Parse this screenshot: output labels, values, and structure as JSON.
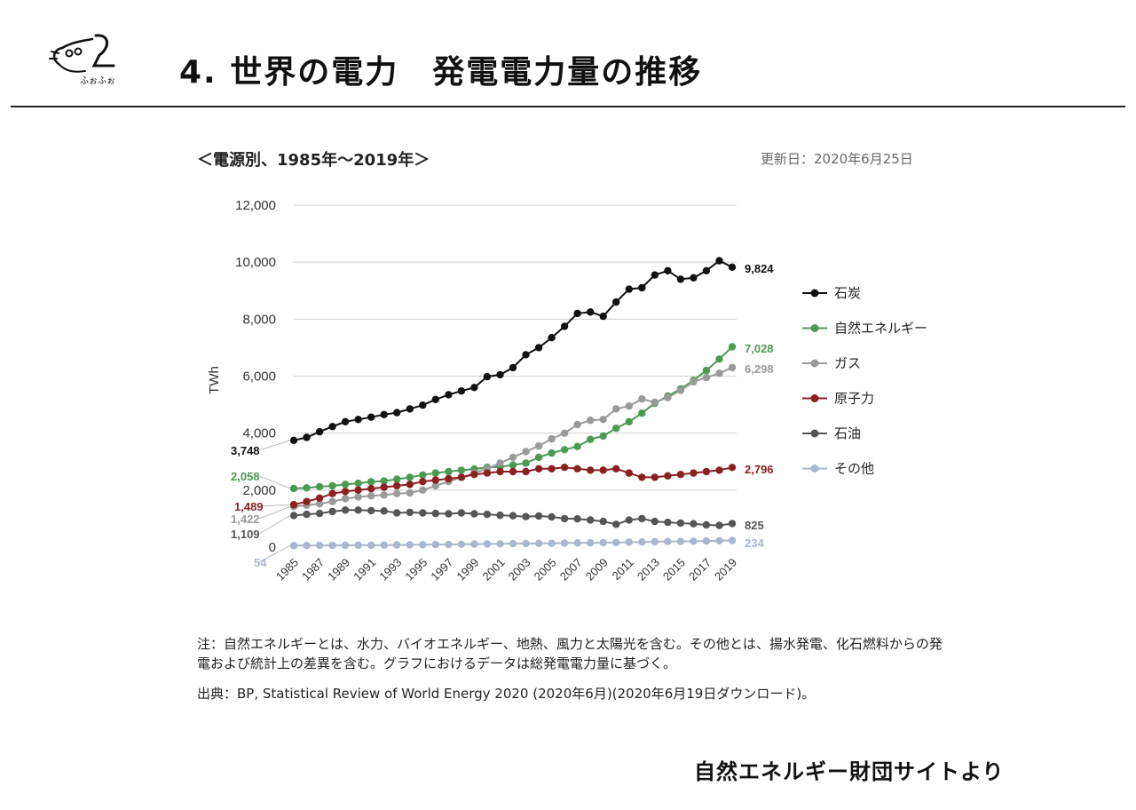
{
  "slide_title": "4. 世界の電力　発電電力量の推移",
  "logo": {
    "icon": "ghost-doodle-logo",
    "text": "ふぉふぉ"
  },
  "chart_heading": "＜電源別、1985年～2019年＞",
  "updated": "更新日：2020年6月25日",
  "note": "注：自然エネルギーとは、水力、バイオエネルギー、地熱、風力と太陽光を含む。その他とは、揚水発電、化石燃料からの発電および統計上の差異を含む。グラフにおけるデータは総発電電力量に基づく。",
  "source": "出典：BP, Statistical Review of World Energy 2020 (2020年6月)(2020年6月19日ダウンロード)。",
  "credit": "自然エネルギー財団サイトより",
  "chart_data": {
    "type": "line",
    "ylabel": "TWh",
    "ylim": [
      0,
      12000
    ],
    "yticks": [
      "0",
      "2,000",
      "4,000",
      "6,000",
      "8,000",
      "10,000",
      "12,000"
    ],
    "xtick_labels": [
      "1985",
      "1987",
      "1989",
      "1991",
      "1993",
      "1995",
      "1997",
      "1999",
      "2001",
      "2003",
      "2005",
      "2007",
      "2009",
      "2011",
      "2013",
      "2015",
      "2017",
      "2019"
    ],
    "grid": true,
    "legend_position": "right",
    "x": [
      1985,
      1986,
      1987,
      1988,
      1989,
      1990,
      1991,
      1992,
      1993,
      1994,
      1995,
      1996,
      1997,
      1998,
      1999,
      2000,
      2001,
      2002,
      2003,
      2004,
      2005,
      2006,
      2007,
      2008,
      2009,
      2010,
      2011,
      2012,
      2013,
      2014,
      2015,
      2016,
      2017,
      2018,
      2019
    ],
    "series": [
      {
        "name": "石炭",
        "color": "#111111",
        "start_label": "3,748",
        "end_label": "9,824",
        "values": [
          3748,
          3850,
          4050,
          4230,
          4400,
          4480,
          4560,
          4650,
          4720,
          4850,
          4980,
          5180,
          5350,
          5480,
          5600,
          5980,
          6050,
          6300,
          6750,
          7000,
          7350,
          7750,
          8200,
          8250,
          8100,
          8600,
          9050,
          9100,
          9550,
          9700,
          9400,
          9450,
          9700,
          10050,
          9824
        ]
      },
      {
        "name": "自然エネルギー",
        "color": "#4c9a52",
        "start_label": "2,058",
        "end_label": "7,028",
        "values": [
          2058,
          2080,
          2120,
          2150,
          2200,
          2240,
          2290,
          2320,
          2380,
          2450,
          2530,
          2600,
          2650,
          2700,
          2740,
          2800,
          2820,
          2880,
          2950,
          3150,
          3300,
          3420,
          3530,
          3780,
          3900,
          4170,
          4400,
          4700,
          5050,
          5300,
          5550,
          5850,
          6200,
          6600,
          7028
        ]
      },
      {
        "name": "ガス",
        "color": "#9a9a9a",
        "start_label": "1,422",
        "end_label": "6,298",
        "values": [
          1422,
          1470,
          1520,
          1600,
          1700,
          1760,
          1800,
          1830,
          1880,
          1900,
          2000,
          2150,
          2300,
          2450,
          2600,
          2750,
          2950,
          3150,
          3350,
          3550,
          3800,
          4000,
          4300,
          4450,
          4480,
          4850,
          4950,
          5200,
          5080,
          5250,
          5500,
          5800,
          5950,
          6100,
          6298
        ]
      },
      {
        "name": "原子力",
        "color": "#8b2020",
        "start_label": "1,489",
        "end_label": "2,796",
        "values": [
          1489,
          1600,
          1720,
          1880,
          1950,
          2000,
          2050,
          2100,
          2150,
          2200,
          2300,
          2350,
          2400,
          2450,
          2550,
          2600,
          2650,
          2650,
          2650,
          2750,
          2750,
          2800,
          2750,
          2700,
          2700,
          2750,
          2600,
          2450,
          2450,
          2500,
          2550,
          2600,
          2650,
          2700,
          2796
        ]
      },
      {
        "name": "石油",
        "color": "#555555",
        "start_label": "1,109",
        "end_label": "825",
        "values": [
          1109,
          1150,
          1180,
          1250,
          1300,
          1300,
          1280,
          1270,
          1200,
          1220,
          1200,
          1180,
          1170,
          1200,
          1170,
          1150,
          1120,
          1100,
          1070,
          1090,
          1060,
          1000,
          990,
          950,
          900,
          800,
          950,
          1000,
          900,
          870,
          840,
          820,
          780,
          760,
          825
        ]
      },
      {
        "name": "その他",
        "color": "#a8b6d0",
        "start_label": "54",
        "end_label": "234",
        "values": [
          54,
          56,
          58,
          60,
          62,
          64,
          66,
          70,
          75,
          80,
          85,
          90,
          95,
          100,
          105,
          110,
          115,
          120,
          125,
          130,
          135,
          140,
          145,
          150,
          155,
          160,
          170,
          180,
          190,
          195,
          200,
          205,
          215,
          225,
          234
        ]
      }
    ]
  }
}
